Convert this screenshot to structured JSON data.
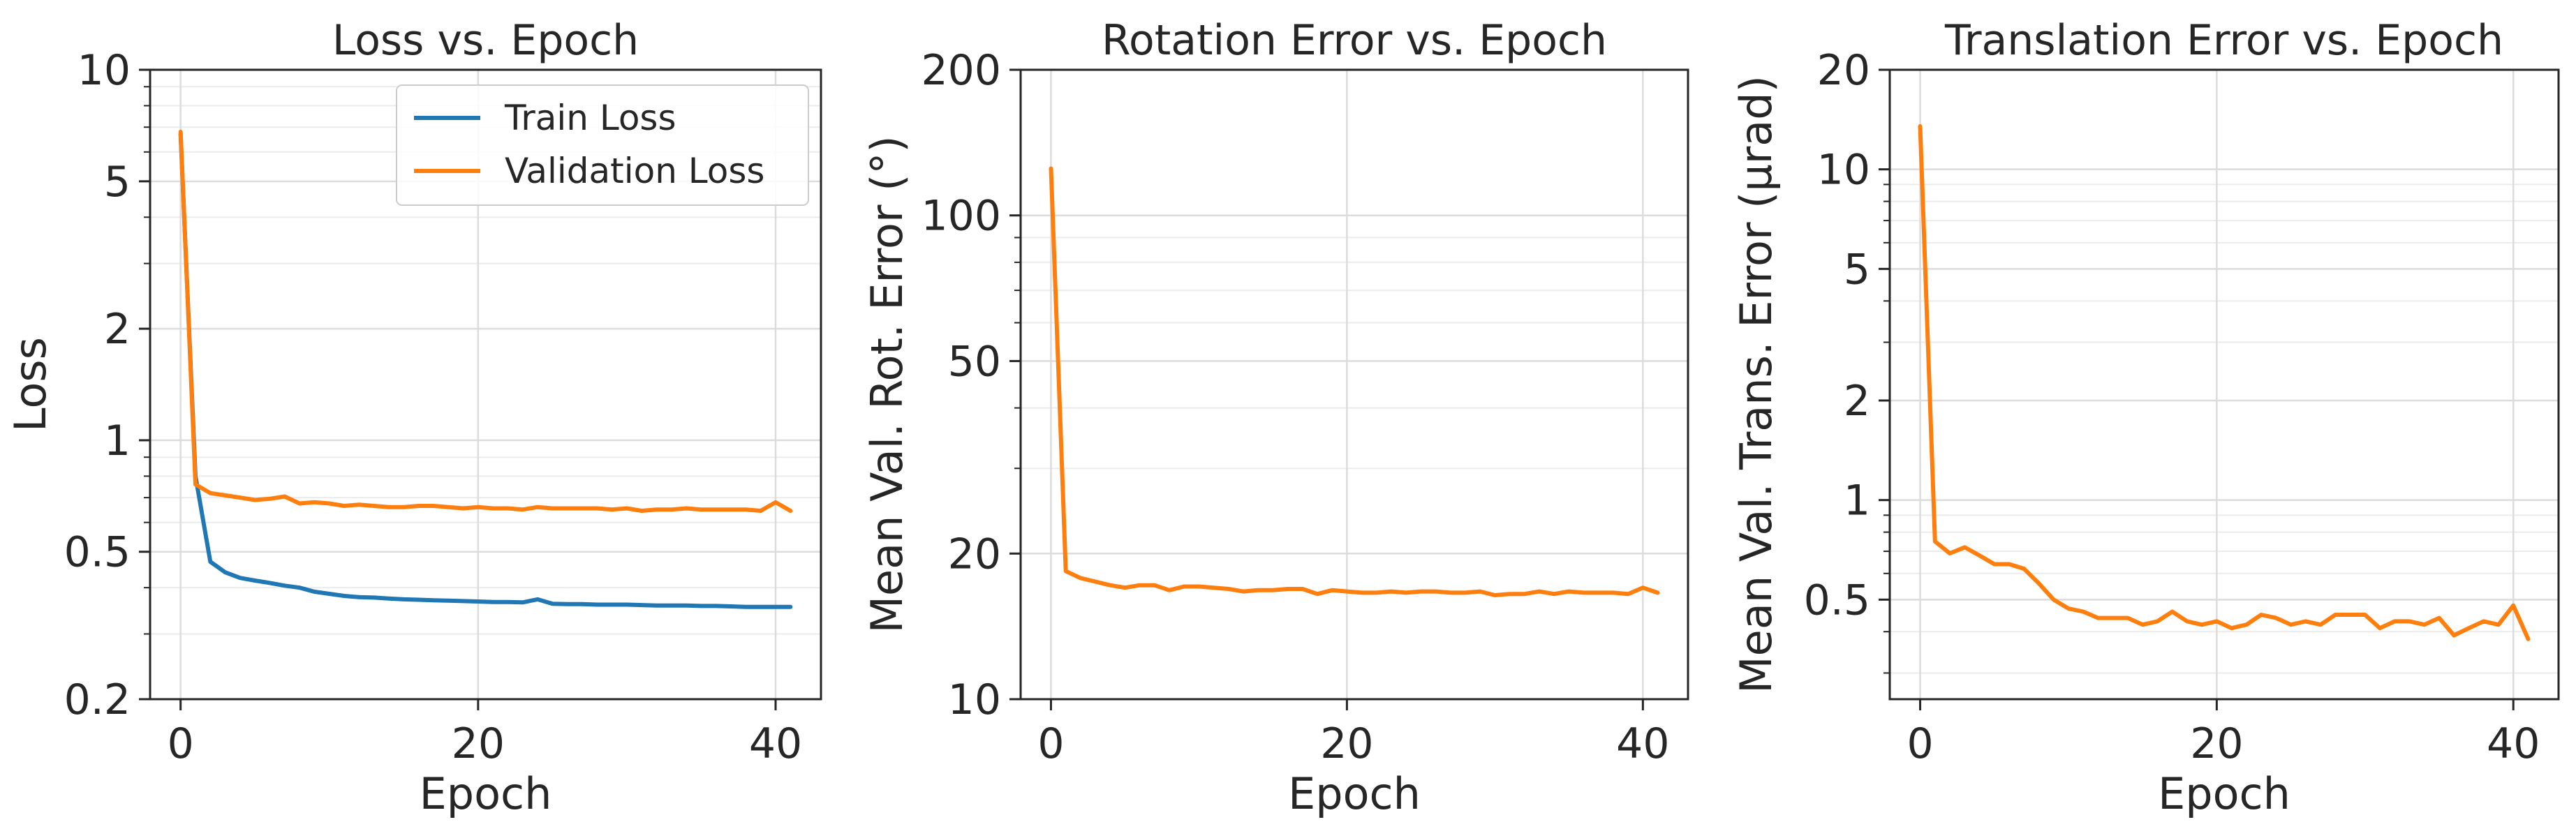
{
  "colors": {
    "train": "#1f77b4",
    "validation": "#ff7f0e",
    "grid": "#dcdcdc",
    "grid_minor": "#ebebeb",
    "axis": "#262626"
  },
  "chart_data": [
    {
      "type": "line",
      "title": "Loss vs. Epoch",
      "xlabel": "Epoch",
      "ylabel": "Loss",
      "yscale": "log",
      "xlim": [
        -2.05,
        43.05
      ],
      "ylim": [
        0.2,
        10
      ],
      "x_ticks": [
        0,
        20,
        40
      ],
      "x_tick_labels": [
        "0",
        "20",
        "40"
      ],
      "y_ticks": [
        0.2,
        0.5,
        1,
        2,
        5,
        10
      ],
      "y_tick_labels": [
        "0.2",
        "0.5",
        "1",
        "2",
        "5",
        "10"
      ],
      "grid": true,
      "legend": "top-right",
      "x": [
        0,
        1,
        2,
        3,
        4,
        5,
        6,
        7,
        8,
        9,
        10,
        11,
        12,
        13,
        14,
        15,
        16,
        17,
        18,
        19,
        20,
        21,
        22,
        23,
        24,
        25,
        26,
        27,
        28,
        29,
        30,
        31,
        32,
        33,
        34,
        35,
        36,
        37,
        38,
        39,
        40,
        41
      ],
      "series": [
        {
          "name": "Train Loss",
          "color_key": "train",
          "values": [
            6.7,
            0.8,
            0.47,
            0.44,
            0.425,
            0.418,
            0.412,
            0.405,
            0.4,
            0.39,
            0.385,
            0.38,
            0.377,
            0.376,
            0.374,
            0.372,
            0.371,
            0.37,
            0.369,
            0.368,
            0.367,
            0.366,
            0.366,
            0.365,
            0.372,
            0.362,
            0.361,
            0.361,
            0.36,
            0.36,
            0.36,
            0.359,
            0.358,
            0.358,
            0.358,
            0.357,
            0.357,
            0.356,
            0.355,
            0.355,
            0.355,
            0.355
          ]
        },
        {
          "name": "Validation Loss",
          "color_key": "validation",
          "values": [
            6.8,
            0.76,
            0.72,
            0.71,
            0.7,
            0.69,
            0.695,
            0.705,
            0.675,
            0.68,
            0.675,
            0.665,
            0.67,
            0.665,
            0.66,
            0.66,
            0.665,
            0.665,
            0.66,
            0.655,
            0.66,
            0.655,
            0.655,
            0.65,
            0.66,
            0.655,
            0.655,
            0.655,
            0.655,
            0.65,
            0.655,
            0.645,
            0.65,
            0.65,
            0.655,
            0.65,
            0.65,
            0.65,
            0.65,
            0.645,
            0.68,
            0.645
          ]
        }
      ]
    },
    {
      "type": "line",
      "title": "Rotation Error vs. Epoch",
      "xlabel": "Epoch",
      "ylabel": "Mean Val. Rot. Error (°)",
      "yscale": "log",
      "xlim": [
        -2.05,
        43.05
      ],
      "ylim": [
        10,
        200
      ],
      "x_ticks": [
        0,
        20,
        40
      ],
      "x_tick_labels": [
        "0",
        "20",
        "40"
      ],
      "y_ticks": [
        10,
        20,
        50,
        100,
        200
      ],
      "y_tick_labels": [
        "10",
        "20",
        "50",
        "100",
        "200"
      ],
      "grid": true,
      "x": [
        0,
        1,
        2,
        3,
        4,
        5,
        6,
        7,
        8,
        9,
        10,
        11,
        12,
        13,
        14,
        15,
        16,
        17,
        18,
        19,
        20,
        21,
        22,
        23,
        24,
        25,
        26,
        27,
        28,
        29,
        30,
        31,
        32,
        33,
        34,
        35,
        36,
        37,
        38,
        39,
        40,
        41
      ],
      "series": [
        {
          "color_key": "validation",
          "values": [
            125,
            18.4,
            17.8,
            17.5,
            17.2,
            17.0,
            17.2,
            17.2,
            16.8,
            17.1,
            17.1,
            17.0,
            16.9,
            16.7,
            16.8,
            16.8,
            16.9,
            16.9,
            16.5,
            16.8,
            16.7,
            16.6,
            16.6,
            16.7,
            16.6,
            16.7,
            16.7,
            16.6,
            16.6,
            16.7,
            16.4,
            16.5,
            16.5,
            16.7,
            16.5,
            16.7,
            16.6,
            16.6,
            16.6,
            16.5,
            17.0,
            16.6
          ]
        }
      ]
    },
    {
      "type": "line",
      "title": "Translation Error vs. Epoch",
      "xlabel": "Epoch",
      "ylabel": "Mean Val. Trans. Error (µrad)",
      "yscale": "log",
      "xlim": [
        -2.05,
        43.05
      ],
      "ylim": [
        0.25,
        20
      ],
      "x_ticks": [
        0,
        20,
        40
      ],
      "x_tick_labels": [
        "0",
        "20",
        "40"
      ],
      "y_ticks": [
        0.5,
        1,
        2,
        5,
        10,
        20
      ],
      "y_tick_labels": [
        "0.5",
        "1",
        "2",
        "5",
        "10",
        "20"
      ],
      "grid": true,
      "x": [
        0,
        1,
        2,
        3,
        4,
        5,
        6,
        7,
        8,
        9,
        10,
        11,
        12,
        13,
        14,
        15,
        16,
        17,
        18,
        19,
        20,
        21,
        22,
        23,
        24,
        25,
        26,
        27,
        28,
        29,
        30,
        31,
        32,
        33,
        34,
        35,
        36,
        37,
        38,
        39,
        40,
        41
      ],
      "series": [
        {
          "color_key": "validation",
          "values": [
            13.5,
            0.75,
            0.69,
            0.72,
            0.68,
            0.64,
            0.64,
            0.62,
            0.56,
            0.5,
            0.47,
            0.46,
            0.44,
            0.44,
            0.44,
            0.42,
            0.43,
            0.46,
            0.43,
            0.42,
            0.43,
            0.41,
            0.42,
            0.45,
            0.44,
            0.42,
            0.43,
            0.42,
            0.45,
            0.45,
            0.45,
            0.41,
            0.43,
            0.43,
            0.42,
            0.44,
            0.39,
            0.41,
            0.43,
            0.42,
            0.48,
            0.38
          ]
        }
      ]
    }
  ]
}
